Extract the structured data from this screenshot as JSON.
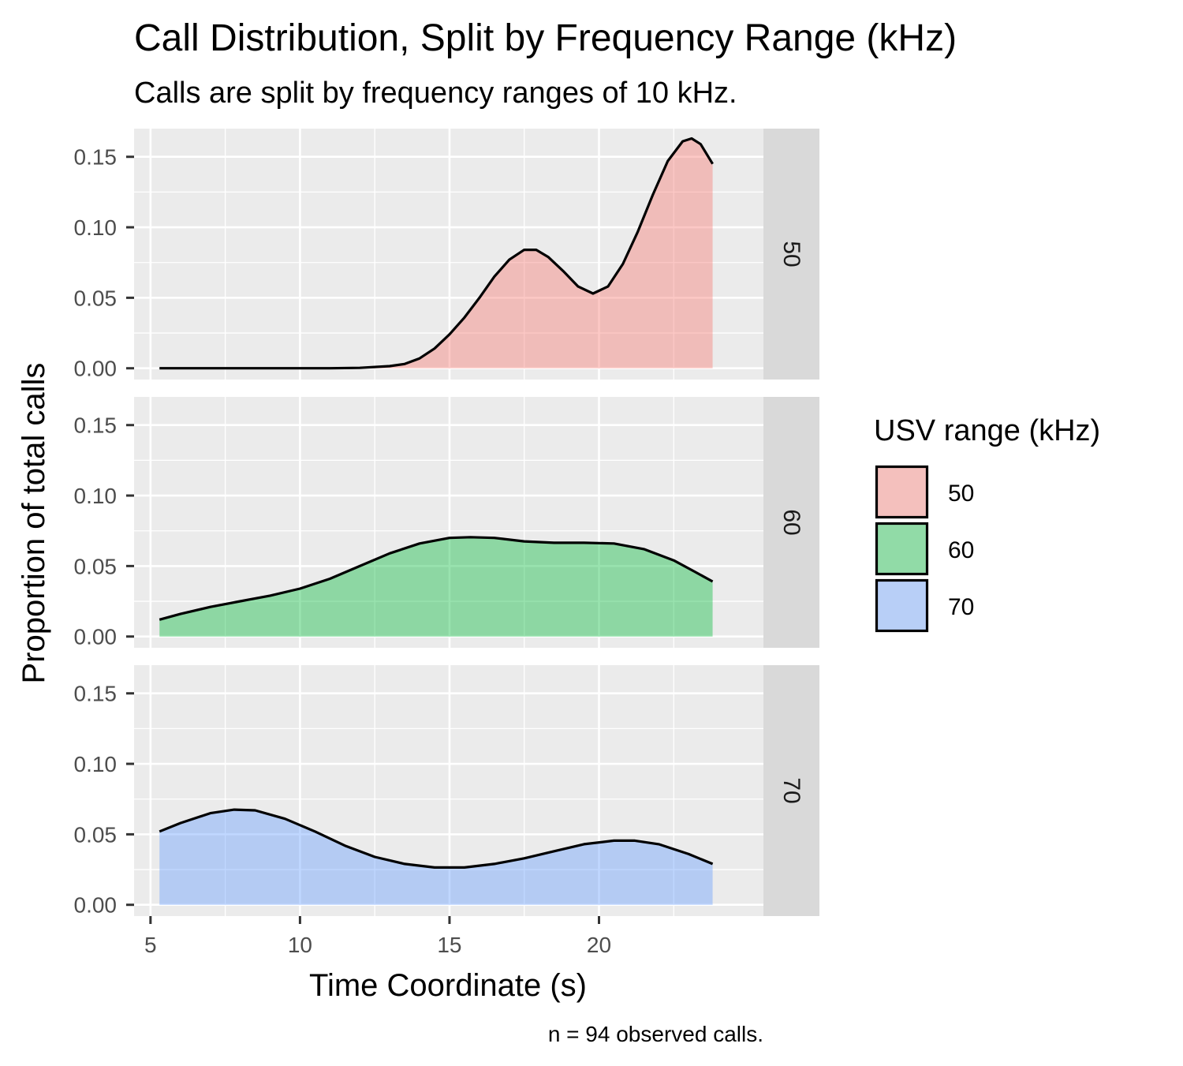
{
  "chart_data": {
    "type": "area",
    "title": "Call Distribution, Split by Frequency Range (kHz)",
    "subtitle": "Calls are split by frequency ranges of 10 kHz.",
    "xlabel": "Time Coordinate (s)",
    "ylabel": "Proportion of total calls",
    "caption": "n = 94 observed calls.",
    "xlim": [
      4.45,
      25.5
    ],
    "ylim": [
      -0.008,
      0.17
    ],
    "x_ticks": [
      5,
      10,
      15,
      20
    ],
    "x_tick_labels": [
      "5",
      "10",
      "15",
      "20"
    ],
    "y_ticks": [
      0,
      0.05,
      0.1,
      0.15
    ],
    "y_tick_labels": [
      "0.00",
      "0.05",
      "0.10",
      "0.15"
    ],
    "grid": true,
    "legend": {
      "title": "USV range (kHz)",
      "position": "right",
      "entries": [
        "50",
        "60",
        "70"
      ]
    },
    "series": [
      {
        "name": "50",
        "facet": "50",
        "fill": "#F8766D",
        "points": [
          [
            5.3,
            0.0
          ],
          [
            7,
            0.0
          ],
          [
            9,
            0.0
          ],
          [
            11,
            0.0
          ],
          [
            12,
            0.0003
          ],
          [
            13,
            0.0015
          ],
          [
            13.5,
            0.003
          ],
          [
            14,
            0.007
          ],
          [
            14.5,
            0.014
          ],
          [
            15,
            0.024
          ],
          [
            15.5,
            0.036
          ],
          [
            16,
            0.05
          ],
          [
            16.5,
            0.065
          ],
          [
            17,
            0.077
          ],
          [
            17.5,
            0.084
          ],
          [
            17.9,
            0.084
          ],
          [
            18.3,
            0.079
          ],
          [
            18.8,
            0.069
          ],
          [
            19.3,
            0.058
          ],
          [
            19.8,
            0.053
          ],
          [
            20.3,
            0.058
          ],
          [
            20.8,
            0.074
          ],
          [
            21.3,
            0.097
          ],
          [
            21.8,
            0.123
          ],
          [
            22.3,
            0.147
          ],
          [
            22.8,
            0.161
          ],
          [
            23.1,
            0.163
          ],
          [
            23.4,
            0.159
          ],
          [
            23.8,
            0.145
          ]
        ]
      },
      {
        "name": "60",
        "facet": "60",
        "fill": "#00BA38",
        "points": [
          [
            5.3,
            0.012
          ],
          [
            6,
            0.016
          ],
          [
            7,
            0.021
          ],
          [
            8,
            0.025
          ],
          [
            9,
            0.029
          ],
          [
            10,
            0.034
          ],
          [
            11,
            0.041
          ],
          [
            12,
            0.05
          ],
          [
            13,
            0.059
          ],
          [
            14,
            0.066
          ],
          [
            15,
            0.07
          ],
          [
            15.7,
            0.0705
          ],
          [
            16.5,
            0.07
          ],
          [
            17.5,
            0.0675
          ],
          [
            18.5,
            0.0665
          ],
          [
            19.5,
            0.0665
          ],
          [
            20.5,
            0.066
          ],
          [
            21.5,
            0.062
          ],
          [
            22.5,
            0.054
          ],
          [
            23.2,
            0.046
          ],
          [
            23.8,
            0.039
          ]
        ]
      },
      {
        "name": "70",
        "facet": "70",
        "fill": "#619CFF",
        "points": [
          [
            5.3,
            0.052
          ],
          [
            6,
            0.058
          ],
          [
            7,
            0.065
          ],
          [
            7.8,
            0.0675
          ],
          [
            8.5,
            0.067
          ],
          [
            9.5,
            0.061
          ],
          [
            10.5,
            0.052
          ],
          [
            11.5,
            0.042
          ],
          [
            12.5,
            0.034
          ],
          [
            13.5,
            0.029
          ],
          [
            14.5,
            0.0265
          ],
          [
            15.5,
            0.0265
          ],
          [
            16.5,
            0.029
          ],
          [
            17.5,
            0.033
          ],
          [
            18.5,
            0.038
          ],
          [
            19.5,
            0.043
          ],
          [
            20.5,
            0.0455
          ],
          [
            21.2,
            0.0455
          ],
          [
            22,
            0.043
          ],
          [
            23,
            0.036
          ],
          [
            23.8,
            0.029
          ]
        ]
      }
    ]
  }
}
